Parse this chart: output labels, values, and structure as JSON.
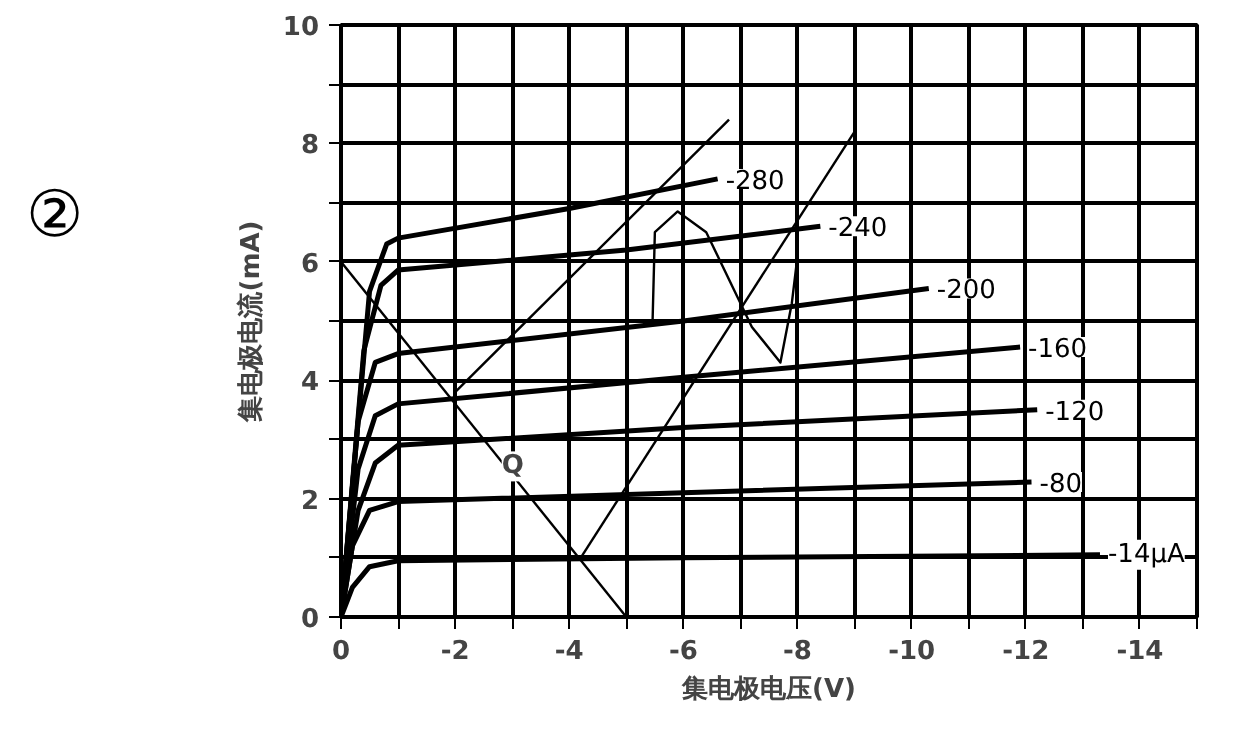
{
  "chart_data": {
    "type": "line",
    "xlabel": "集电极电压(V)",
    "ylabel": "集电极电流(mA)",
    "xlim": [
      0,
      -15
    ],
    "ylim": [
      0,
      10
    ],
    "xticks": [
      0,
      {
        "value": -1,
        "label": null
      },
      -2,
      {
        "value": -3,
        "label": null
      },
      -4,
      {
        "value": -5,
        "label": null
      },
      -6,
      {
        "value": -7,
        "label": null
      },
      -8,
      {
        "value": -9,
        "label": null
      },
      -10,
      {
        "value": -11,
        "label": null
      },
      -12,
      {
        "value": -13,
        "label": null
      },
      -14,
      {
        "value": -15,
        "label": null
      }
    ],
    "yticks": [
      0,
      {
        "value": 1,
        "label": null
      },
      2,
      {
        "value": 3,
        "label": null
      },
      4,
      {
        "value": 5,
        "label": null
      },
      6,
      {
        "value": 7,
        "label": null
      },
      8,
      {
        "value": 9,
        "label": null
      },
      10
    ],
    "grid": true,
    "marker": "none",
    "line_style": "solid",
    "series": [
      {
        "name": "-280",
        "color": "#000000",
        "x": [
          0,
          -0.5,
          -0.8,
          -1,
          -4,
          -6.6
        ],
        "values": [
          0,
          5.5,
          6.3,
          6.4,
          6.9,
          7.4
        ]
      },
      {
        "name": "-240",
        "color": "#000000",
        "x": [
          0,
          -0.4,
          -0.7,
          -1,
          -5,
          -8.4
        ],
        "values": [
          0,
          4.5,
          5.6,
          5.86,
          6.2,
          6.6
        ]
      },
      {
        "name": "-200",
        "color": "#000000",
        "x": [
          0,
          -0.3,
          -0.6,
          -1,
          -6,
          -10.3
        ],
        "values": [
          0,
          3.3,
          4.3,
          4.45,
          5.0,
          5.55
        ]
      },
      {
        "name": "-160",
        "color": "#000000",
        "x": [
          0,
          -0.3,
          -0.6,
          -1,
          -6,
          -11.9
        ],
        "values": [
          0,
          2.5,
          3.4,
          3.6,
          4.05,
          4.56
        ]
      },
      {
        "name": "-120",
        "color": "#000000",
        "x": [
          0,
          -0.3,
          -0.6,
          -1,
          -6,
          -12.2
        ],
        "values": [
          0,
          1.8,
          2.6,
          2.9,
          3.2,
          3.5
        ]
      },
      {
        "name": "-80",
        "color": "#000000",
        "x": [
          0,
          -0.2,
          -0.5,
          -1,
          -6,
          -12.1
        ],
        "values": [
          0,
          1.2,
          1.8,
          1.95,
          2.1,
          2.28
        ]
      },
      {
        "name": "-14μA",
        "color": "#000000",
        "x": [
          0,
          -0.2,
          -0.5,
          -1,
          -6,
          -13.3
        ],
        "values": [
          0,
          0.5,
          0.85,
          0.95,
          1.0,
          1.05
        ]
      },
      {
        "color": "#000000",
        "x": [
          0,
          -5
        ],
        "values": [
          6,
          0
        ]
      },
      {
        "color": "#000000",
        "x": [
          -2,
          -6.8
        ],
        "values": [
          3.8,
          8.4
        ]
      },
      {
        "color": "#000000",
        "x": [
          -4.2,
          -9.0
        ],
        "values": [
          1.0,
          8.2
        ]
      },
      {
        "color": "#000000",
        "x": [
          -5.46,
          -5.5,
          -5.9,
          -6.4,
          -7.2,
          -7.7,
          -7.9,
          -8.0
        ],
        "values": [
          5.0,
          6.5,
          6.85,
          6.5,
          4.9,
          4.3,
          5.3,
          6.1
        ]
      }
    ],
    "annotations": [
      "②",
      {
        "text": "Q",
        "x": -2.5,
        "y": 3.0
      }
    ]
  }
}
